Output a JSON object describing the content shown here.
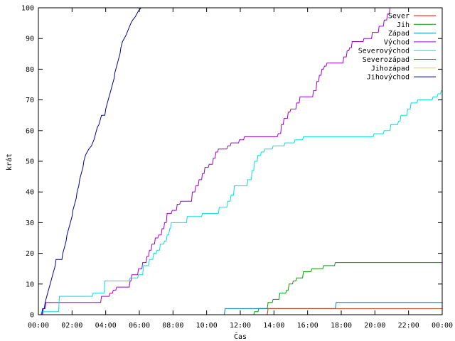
{
  "chart_data": {
    "type": "line",
    "title": "",
    "xlabel": "Čas",
    "ylabel": "krát",
    "x_unit": "hours",
    "xlim": [
      0,
      24
    ],
    "ylim": [
      0,
      100
    ],
    "x_tick_values": [
      0,
      2,
      4,
      6,
      8,
      10,
      12,
      14,
      16,
      18,
      20,
      22,
      24
    ],
    "x_tick_labels": [
      "00:00",
      "02:00",
      "04:00",
      "06:00",
      "08:00",
      "10:00",
      "12:00",
      "14:00",
      "16:00",
      "18:00",
      "20:00",
      "22:00",
      "00:00"
    ],
    "y_ticks": [
      0,
      10,
      20,
      30,
      40,
      50,
      60,
      70,
      80,
      90,
      100
    ],
    "grid": false,
    "legend_position": "top-right",
    "series": [
      {
        "name": "Sever",
        "color": "#ff0000",
        "points": []
      },
      {
        "name": "Jih",
        "color": "#00a000",
        "points": [
          [
            0,
            0
          ],
          [
            12.8,
            0
          ],
          [
            12.85,
            1
          ],
          [
            13.05,
            1
          ],
          [
            13.1,
            2
          ],
          [
            13.6,
            2
          ],
          [
            13.65,
            4
          ],
          [
            13.9,
            4
          ],
          [
            13.95,
            5
          ],
          [
            14.3,
            5
          ],
          [
            14.35,
            7
          ],
          [
            14.7,
            7
          ],
          [
            14.75,
            8
          ],
          [
            14.85,
            8
          ],
          [
            14.9,
            10
          ],
          [
            15.1,
            10
          ],
          [
            15.15,
            11
          ],
          [
            15.3,
            11
          ],
          [
            15.35,
            12
          ],
          [
            15.7,
            12
          ],
          [
            15.75,
            14
          ],
          [
            16.2,
            14
          ],
          [
            16.25,
            15
          ],
          [
            16.9,
            15
          ],
          [
            16.95,
            16
          ],
          [
            17.6,
            16
          ],
          [
            17.65,
            17
          ],
          [
            24,
            17
          ]
        ]
      },
      {
        "name": "Západ",
        "color": "#0080c0",
        "points": [
          [
            0,
            0
          ],
          [
            11.05,
            0
          ],
          [
            11.1,
            2
          ],
          [
            17.65,
            2
          ],
          [
            17.7,
            4
          ],
          [
            24,
            4
          ]
        ]
      },
      {
        "name": "Východ",
        "color": "#a000d0",
        "points": [
          [
            0,
            0
          ],
          [
            0.25,
            0
          ],
          [
            0.3,
            2
          ],
          [
            0.4,
            2
          ],
          [
            0.45,
            4
          ],
          [
            3.7,
            4
          ],
          [
            3.75,
            6
          ],
          [
            4.2,
            6
          ],
          [
            4.25,
            7
          ],
          [
            4.4,
            7
          ],
          [
            4.45,
            8
          ],
          [
            4.6,
            8
          ],
          [
            4.65,
            9
          ],
          [
            5.4,
            9
          ],
          [
            5.45,
            11
          ],
          [
            5.5,
            11
          ],
          [
            5.55,
            13
          ],
          [
            5.9,
            13
          ],
          [
            5.95,
            15
          ],
          [
            6.15,
            15
          ],
          [
            6.2,
            17
          ],
          [
            6.4,
            17
          ],
          [
            6.45,
            19
          ],
          [
            6.55,
            19
          ],
          [
            6.6,
            21
          ],
          [
            6.7,
            21
          ],
          [
            6.75,
            23
          ],
          [
            6.9,
            23
          ],
          [
            6.95,
            25
          ],
          [
            7.1,
            25
          ],
          [
            7.15,
            26
          ],
          [
            7.3,
            26
          ],
          [
            7.35,
            28
          ],
          [
            7.45,
            28
          ],
          [
            7.5,
            30
          ],
          [
            7.6,
            30
          ],
          [
            7.65,
            33
          ],
          [
            7.9,
            33
          ],
          [
            7.95,
            34
          ],
          [
            8.2,
            34
          ],
          [
            8.25,
            36
          ],
          [
            8.4,
            36
          ],
          [
            8.45,
            37
          ],
          [
            9.1,
            37
          ],
          [
            9.15,
            40
          ],
          [
            9.3,
            40
          ],
          [
            9.35,
            42
          ],
          [
            9.5,
            42
          ],
          [
            9.55,
            44
          ],
          [
            9.7,
            44
          ],
          [
            9.75,
            46
          ],
          [
            9.85,
            46
          ],
          [
            9.9,
            48
          ],
          [
            10.1,
            48
          ],
          [
            10.15,
            49
          ],
          [
            10.35,
            49
          ],
          [
            10.4,
            51
          ],
          [
            10.5,
            51
          ],
          [
            10.55,
            53
          ],
          [
            10.65,
            53
          ],
          [
            10.7,
            54
          ],
          [
            11.2,
            54
          ],
          [
            11.25,
            55
          ],
          [
            11.4,
            55
          ],
          [
            11.45,
            56
          ],
          [
            11.9,
            56
          ],
          [
            11.95,
            57
          ],
          [
            12.2,
            57
          ],
          [
            12.25,
            58
          ],
          [
            14.2,
            58
          ],
          [
            14.25,
            59
          ],
          [
            14.4,
            59
          ],
          [
            14.45,
            62
          ],
          [
            14.55,
            62
          ],
          [
            14.6,
            64
          ],
          [
            14.8,
            64
          ],
          [
            14.85,
            66
          ],
          [
            14.95,
            66
          ],
          [
            15.0,
            67
          ],
          [
            15.3,
            67
          ],
          [
            15.35,
            69
          ],
          [
            15.5,
            69
          ],
          [
            15.55,
            71
          ],
          [
            16.3,
            71
          ],
          [
            16.35,
            73
          ],
          [
            16.5,
            73
          ],
          [
            16.55,
            76
          ],
          [
            16.65,
            76
          ],
          [
            16.7,
            78
          ],
          [
            16.8,
            78
          ],
          [
            16.85,
            80
          ],
          [
            16.95,
            80
          ],
          [
            17.0,
            81
          ],
          [
            17.1,
            81
          ],
          [
            17.15,
            82
          ],
          [
            18.1,
            82
          ],
          [
            18.15,
            84
          ],
          [
            18.3,
            84
          ],
          [
            18.35,
            86
          ],
          [
            18.45,
            86
          ],
          [
            18.5,
            87
          ],
          [
            18.6,
            87
          ],
          [
            18.65,
            89
          ],
          [
            19.3,
            89
          ],
          [
            19.35,
            90
          ],
          [
            19.8,
            90
          ],
          [
            19.85,
            92
          ],
          [
            20.2,
            92
          ],
          [
            20.25,
            94
          ],
          [
            20.5,
            94
          ],
          [
            20.55,
            96
          ],
          [
            20.7,
            96
          ],
          [
            20.75,
            98
          ],
          [
            20.85,
            98
          ],
          [
            20.9,
            100
          ],
          [
            21.0,
            100
          ]
        ]
      },
      {
        "name": "Severovýchod",
        "color": "#00e0e0",
        "points": [
          [
            0,
            0
          ],
          [
            0.15,
            0
          ],
          [
            0.2,
            1
          ],
          [
            1.2,
            1
          ],
          [
            1.25,
            6
          ],
          [
            3.2,
            6
          ],
          [
            3.25,
            7
          ],
          [
            3.9,
            7
          ],
          [
            3.95,
            11
          ],
          [
            5.4,
            11
          ],
          [
            5.45,
            12
          ],
          [
            5.9,
            12
          ],
          [
            5.95,
            13
          ],
          [
            6.2,
            13
          ],
          [
            6.25,
            16
          ],
          [
            6.55,
            16
          ],
          [
            6.6,
            18
          ],
          [
            6.8,
            18
          ],
          [
            6.85,
            20
          ],
          [
            7.0,
            20
          ],
          [
            7.05,
            21
          ],
          [
            7.2,
            21
          ],
          [
            7.25,
            23
          ],
          [
            7.45,
            23
          ],
          [
            7.5,
            24
          ],
          [
            7.6,
            24
          ],
          [
            7.65,
            26
          ],
          [
            7.75,
            26
          ],
          [
            7.8,
            28
          ],
          [
            7.85,
            28
          ],
          [
            7.9,
            30
          ],
          [
            8.8,
            30
          ],
          [
            8.85,
            32
          ],
          [
            9.7,
            32
          ],
          [
            9.75,
            33
          ],
          [
            10.7,
            33
          ],
          [
            10.75,
            35
          ],
          [
            11.2,
            35
          ],
          [
            11.25,
            37
          ],
          [
            11.4,
            37
          ],
          [
            11.45,
            39
          ],
          [
            11.6,
            39
          ],
          [
            11.65,
            42
          ],
          [
            12.4,
            42
          ],
          [
            12.45,
            44
          ],
          [
            12.65,
            44
          ],
          [
            12.7,
            47
          ],
          [
            12.8,
            47
          ],
          [
            12.85,
            50
          ],
          [
            13.0,
            50
          ],
          [
            13.05,
            52
          ],
          [
            13.2,
            52
          ],
          [
            13.25,
            53
          ],
          [
            13.4,
            53
          ],
          [
            13.45,
            54
          ],
          [
            13.9,
            54
          ],
          [
            13.95,
            55
          ],
          [
            14.6,
            55
          ],
          [
            14.65,
            56
          ],
          [
            15.2,
            56
          ],
          [
            15.25,
            57
          ],
          [
            15.7,
            57
          ],
          [
            15.75,
            58
          ],
          [
            19.9,
            58
          ],
          [
            19.95,
            59
          ],
          [
            20.5,
            59
          ],
          [
            20.55,
            60
          ],
          [
            20.9,
            60
          ],
          [
            20.95,
            62
          ],
          [
            21.35,
            62
          ],
          [
            21.4,
            63
          ],
          [
            21.5,
            63
          ],
          [
            21.55,
            65
          ],
          [
            21.9,
            65
          ],
          [
            21.95,
            67
          ],
          [
            22.1,
            67
          ],
          [
            22.15,
            69
          ],
          [
            22.5,
            69
          ],
          [
            22.55,
            70
          ],
          [
            23.4,
            70
          ],
          [
            23.45,
            71
          ],
          [
            23.7,
            71
          ],
          [
            23.75,
            72
          ],
          [
            23.9,
            72
          ],
          [
            23.95,
            73
          ],
          [
            24,
            73
          ]
        ]
      },
      {
        "name": "Severozápad",
        "color": "#c04000",
        "points": [
          [
            0,
            0
          ],
          [
            13.6,
            0
          ],
          [
            13.65,
            2
          ],
          [
            24,
            2
          ]
        ]
      },
      {
        "name": "Jihozápad",
        "color": "#e0e000",
        "points": []
      },
      {
        "name": "Jihovýchod",
        "color": "#0000a0",
        "points": [
          [
            0,
            0
          ],
          [
            0.2,
            0
          ],
          [
            0.25,
            2
          ],
          [
            0.35,
            2
          ],
          [
            0.4,
            4
          ],
          [
            0.5,
            6
          ],
          [
            0.6,
            8
          ],
          [
            0.7,
            10
          ],
          [
            0.8,
            12
          ],
          [
            0.9,
            14
          ],
          [
            1.0,
            16
          ],
          [
            1.05,
            18
          ],
          [
            1.4,
            18
          ],
          [
            1.45,
            20
          ],
          [
            1.55,
            22
          ],
          [
            1.65,
            24
          ],
          [
            1.7,
            26
          ],
          [
            1.8,
            28
          ],
          [
            1.9,
            30
          ],
          [
            2.0,
            32
          ],
          [
            2.05,
            34
          ],
          [
            2.15,
            36
          ],
          [
            2.25,
            38
          ],
          [
            2.3,
            40
          ],
          [
            2.4,
            42
          ],
          [
            2.45,
            44
          ],
          [
            2.55,
            46
          ],
          [
            2.65,
            48
          ],
          [
            2.7,
            50
          ],
          [
            2.8,
            52
          ],
          [
            2.9,
            53
          ],
          [
            3.0,
            54
          ],
          [
            3.15,
            55
          ],
          [
            3.3,
            57
          ],
          [
            3.4,
            59
          ],
          [
            3.5,
            61
          ],
          [
            3.6,
            62
          ],
          [
            3.7,
            64
          ],
          [
            3.75,
            65
          ],
          [
            3.95,
            65
          ],
          [
            4.0,
            67
          ],
          [
            4.1,
            69
          ],
          [
            4.2,
            71
          ],
          [
            4.3,
            73
          ],
          [
            4.4,
            75
          ],
          [
            4.5,
            77
          ],
          [
            4.55,
            79
          ],
          [
            4.65,
            81
          ],
          [
            4.75,
            83
          ],
          [
            4.85,
            85
          ],
          [
            4.9,
            87
          ],
          [
            5.0,
            89
          ],
          [
            5.1,
            90
          ],
          [
            5.2,
            91
          ],
          [
            5.35,
            93
          ],
          [
            5.5,
            95
          ],
          [
            5.6,
            96
          ],
          [
            5.75,
            97
          ],
          [
            5.85,
            98
          ],
          [
            5.95,
            99
          ],
          [
            6.1,
            100
          ]
        ]
      }
    ]
  }
}
